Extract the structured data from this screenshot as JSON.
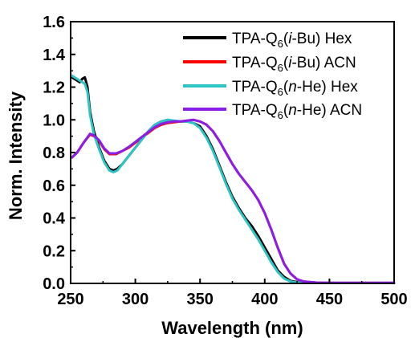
{
  "chart_data": {
    "type": "line",
    "title": "",
    "xlabel": "Wavelength (nm)",
    "ylabel": "Norm. Intensity",
    "xlim": [
      250,
      500
    ],
    "ylim": [
      0.0,
      1.6
    ],
    "xticks": [
      "250",
      "300",
      "350",
      "400",
      "450",
      "500"
    ],
    "yticks": [
      "0.0",
      "0.2",
      "0.4",
      "0.6",
      "0.8",
      "1.0",
      "1.2",
      "1.4",
      "1.6"
    ],
    "grid": false,
    "legend_position": "top-right",
    "series": [
      {
        "name": "TPA-Q6(i-Bu) Hex",
        "legend_parts": [
          "TPA-Q",
          "6",
          "(",
          "i",
          "-Bu) Hex"
        ],
        "color": "#000000",
        "x": [
          251,
          253,
          255,
          257,
          259,
          261,
          263,
          265,
          268,
          272,
          276,
          280,
          283,
          286,
          290,
          295,
          300,
          305,
          310,
          315,
          320,
          325,
          330,
          335,
          340,
          345,
          350,
          355,
          360,
          365,
          370,
          375,
          380,
          385,
          390,
          395,
          400,
          405,
          410,
          415,
          420,
          425,
          430,
          440,
          450,
          470,
          500
        ],
        "y": [
          1.26,
          1.25,
          1.24,
          1.23,
          1.25,
          1.26,
          1.2,
          1.05,
          0.93,
          0.83,
          0.75,
          0.7,
          0.69,
          0.7,
          0.73,
          0.78,
          0.83,
          0.88,
          0.93,
          0.97,
          0.99,
          1.0,
          0.99,
          0.99,
          0.99,
          0.98,
          0.96,
          0.9,
          0.82,
          0.72,
          0.62,
          0.53,
          0.46,
          0.4,
          0.35,
          0.29,
          0.22,
          0.15,
          0.08,
          0.04,
          0.015,
          0.008,
          0.005,
          0.004,
          0.003,
          0.003,
          0.003
        ]
      },
      {
        "name": "TPA-Q6(i-Bu) ACN",
        "legend_parts": [
          "TPA-Q",
          "6",
          "(",
          "i",
          "-Bu) ACN"
        ],
        "color": "#ff0000",
        "x": [
          251,
          255,
          260,
          265,
          268,
          272,
          276,
          280,
          285,
          290,
          295,
          300,
          305,
          310,
          315,
          320,
          325,
          330,
          335,
          340,
          345,
          350,
          355,
          360,
          365,
          370,
          375,
          380,
          385,
          390,
          395,
          400,
          405,
          410,
          415,
          420,
          425,
          430,
          440,
          450,
          470,
          500
        ],
        "y": [
          0.77,
          0.8,
          0.86,
          0.91,
          0.9,
          0.87,
          0.82,
          0.79,
          0.79,
          0.81,
          0.83,
          0.86,
          0.89,
          0.92,
          0.95,
          0.97,
          0.98,
          0.985,
          0.99,
          0.995,
          1.0,
          0.99,
          0.97,
          0.93,
          0.87,
          0.8,
          0.73,
          0.67,
          0.62,
          0.57,
          0.51,
          0.43,
          0.33,
          0.22,
          0.12,
          0.06,
          0.025,
          0.012,
          0.005,
          0.003,
          0.003,
          0.003
        ]
      },
      {
        "name": "TPA-Q6(n-He) Hex",
        "legend_parts": [
          "TPA-Q",
          "6",
          "(",
          "n",
          "-He) Hex"
        ],
        "color": "#2ec4c6",
        "x": [
          251,
          253,
          255,
          257,
          259,
          261,
          263,
          265,
          268,
          272,
          276,
          280,
          283,
          286,
          290,
          295,
          300,
          305,
          310,
          315,
          320,
          325,
          330,
          335,
          340,
          345,
          350,
          355,
          360,
          365,
          370,
          375,
          380,
          385,
          390,
          395,
          400,
          405,
          410,
          415,
          420,
          425,
          430,
          440,
          450,
          470,
          500
        ],
        "y": [
          1.27,
          1.26,
          1.25,
          1.24,
          1.23,
          1.22,
          1.17,
          1.03,
          0.91,
          0.82,
          0.74,
          0.69,
          0.68,
          0.69,
          0.73,
          0.78,
          0.83,
          0.88,
          0.93,
          0.97,
          0.99,
          1.0,
          0.995,
          0.99,
          0.99,
          0.98,
          0.95,
          0.89,
          0.81,
          0.71,
          0.61,
          0.52,
          0.45,
          0.39,
          0.33,
          0.27,
          0.2,
          0.13,
          0.07,
          0.03,
          0.012,
          0.006,
          0.004,
          0.003,
          0.003,
          0.003,
          0.003
        ]
      },
      {
        "name": "TPA-Q6(n-He) ACN",
        "legend_parts": [
          "TPA-Q",
          "6",
          "(",
          "n",
          "-He) ACN"
        ],
        "color": "#8a1ee6",
        "x": [
          251,
          255,
          260,
          265,
          268,
          272,
          276,
          280,
          285,
          290,
          295,
          300,
          305,
          310,
          315,
          320,
          325,
          330,
          335,
          340,
          345,
          350,
          355,
          360,
          365,
          370,
          375,
          380,
          385,
          390,
          395,
          400,
          405,
          410,
          415,
          420,
          425,
          430,
          440,
          450,
          470,
          500
        ],
        "y": [
          0.77,
          0.8,
          0.86,
          0.915,
          0.905,
          0.875,
          0.825,
          0.795,
          0.795,
          0.81,
          0.835,
          0.865,
          0.895,
          0.925,
          0.955,
          0.975,
          0.985,
          0.99,
          0.99,
          0.995,
          1.0,
          0.99,
          0.97,
          0.93,
          0.87,
          0.8,
          0.73,
          0.67,
          0.62,
          0.57,
          0.51,
          0.43,
          0.33,
          0.22,
          0.12,
          0.06,
          0.025,
          0.012,
          0.005,
          0.003,
          0.003,
          0.003
        ]
      }
    ]
  }
}
